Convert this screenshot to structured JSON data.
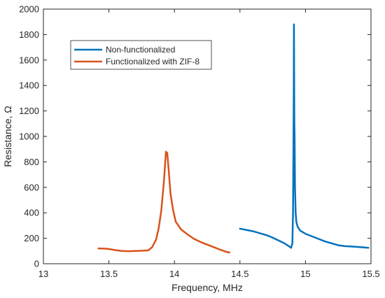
{
  "chart_data": {
    "type": "line",
    "title": "",
    "xlabel": "Frequency, MHz",
    "ylabel": "Resistance, Ω",
    "xlim": [
      13,
      15.5
    ],
    "ylim": [
      0,
      2000
    ],
    "xticks": [
      13,
      13.5,
      14,
      14.5,
      15,
      15.5
    ],
    "xtick_labels": [
      "13",
      "13.5",
      "14",
      "14.5",
      "15",
      "15.5"
    ],
    "yticks": [
      0,
      200,
      400,
      600,
      800,
      1000,
      1200,
      1400,
      1600,
      1800,
      2000
    ],
    "ytick_labels": [
      "0",
      "200",
      "400",
      "600",
      "800",
      "1000",
      "1200",
      "1400",
      "1600",
      "1800",
      "2000"
    ],
    "grid": false,
    "legend_position": "top-left",
    "series": [
      {
        "name": "Non-functionalized",
        "color": "#0072BD",
        "x": [
          14.5,
          14.55,
          14.6,
          14.65,
          14.7,
          14.75,
          14.8,
          14.84,
          14.87,
          14.89,
          14.9,
          14.905,
          14.91,
          14.912,
          14.915,
          14.917,
          14.92,
          14.925,
          14.93,
          14.94,
          14.96,
          15.0,
          15.05,
          15.1,
          15.15,
          15.2,
          15.25,
          15.3,
          15.35,
          15.4,
          15.45,
          15.48
        ],
        "y": [
          275,
          265,
          255,
          240,
          225,
          205,
          180,
          160,
          140,
          125,
          160,
          400,
          1200,
          1880,
          1100,
          1000,
          600,
          400,
          330,
          290,
          260,
          235,
          215,
          195,
          175,
          160,
          145,
          138,
          135,
          132,
          128,
          125
        ]
      },
      {
        "name": "Functionalized with ZIF-8",
        "color": "#D95319",
        "x": [
          13.42,
          13.48,
          13.52,
          13.56,
          13.6,
          13.65,
          13.7,
          13.75,
          13.8,
          13.83,
          13.86,
          13.88,
          13.9,
          13.92,
          13.935,
          13.945,
          13.955,
          13.97,
          13.99,
          14.01,
          14.05,
          14.1,
          14.15,
          14.2,
          14.25,
          14.3,
          14.35,
          14.4,
          14.42
        ],
        "y": [
          120,
          118,
          112,
          105,
          100,
          98,
          100,
          102,
          105,
          130,
          190,
          280,
          420,
          650,
          880,
          870,
          750,
          550,
          420,
          330,
          270,
          230,
          195,
          170,
          150,
          130,
          110,
          92,
          88
        ]
      }
    ]
  }
}
